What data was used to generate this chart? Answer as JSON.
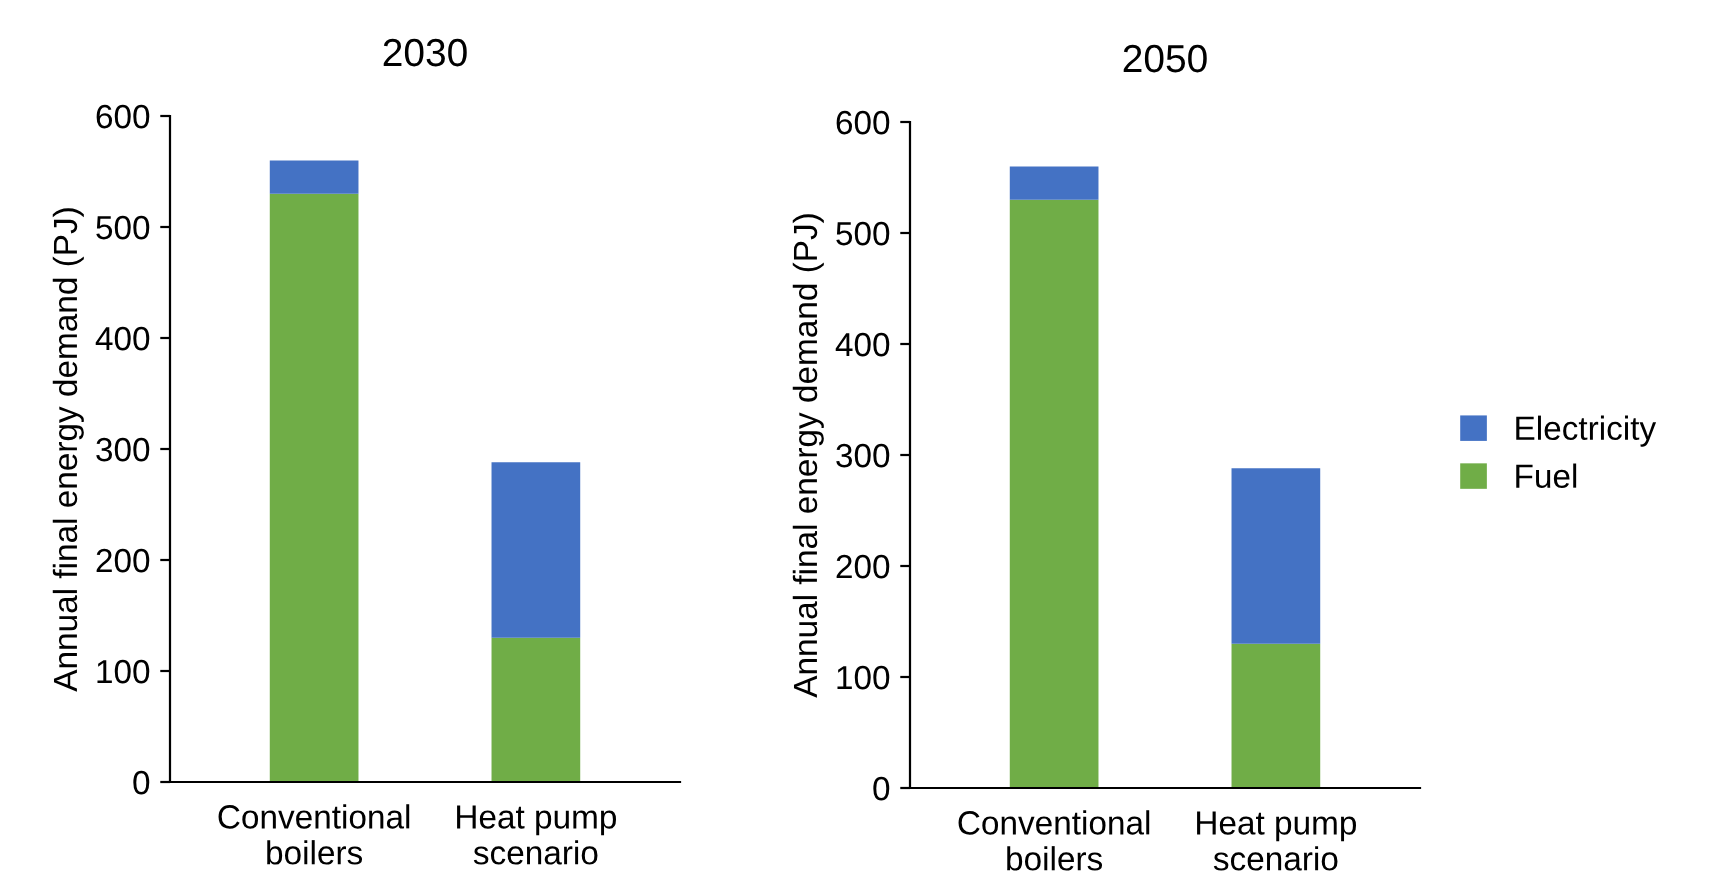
{
  "chart_data": [
    {
      "type": "bar",
      "title": "2030",
      "ylabel": "Annual final energy demand (PJ)",
      "categories": [
        "Conventional\nboilers",
        "Heat pump\nscenario"
      ],
      "stacked": true,
      "ylim": [
        0,
        600
      ],
      "yticks": [
        0,
        100,
        200,
        300,
        400,
        500,
        600
      ],
      "grid": false,
      "series": [
        {
          "color": "#70ad47",
          "values": [
            530,
            130
          ]
        },
        {
          "color": "#4472c4",
          "values": [
            30,
            158
          ]
        }
      ]
    },
    {
      "type": "bar",
      "title": "2050",
      "ylabel": "Annual final energy demand (PJ)",
      "categories": [
        "Conventional\nboilers",
        "Heat pump\nscenario"
      ],
      "stacked": true,
      "ylim": [
        0,
        600
      ],
      "yticks": [
        0,
        100,
        200,
        300,
        400,
        500,
        600
      ],
      "grid": false,
      "legend": "right",
      "series": [
        {
          "name": "Fuel",
          "color": "#70ad47",
          "values": [
            530,
            130
          ]
        },
        {
          "name": "Electricity",
          "color": "#4472c4",
          "values": [
            30,
            158
          ]
        }
      ]
    }
  ]
}
